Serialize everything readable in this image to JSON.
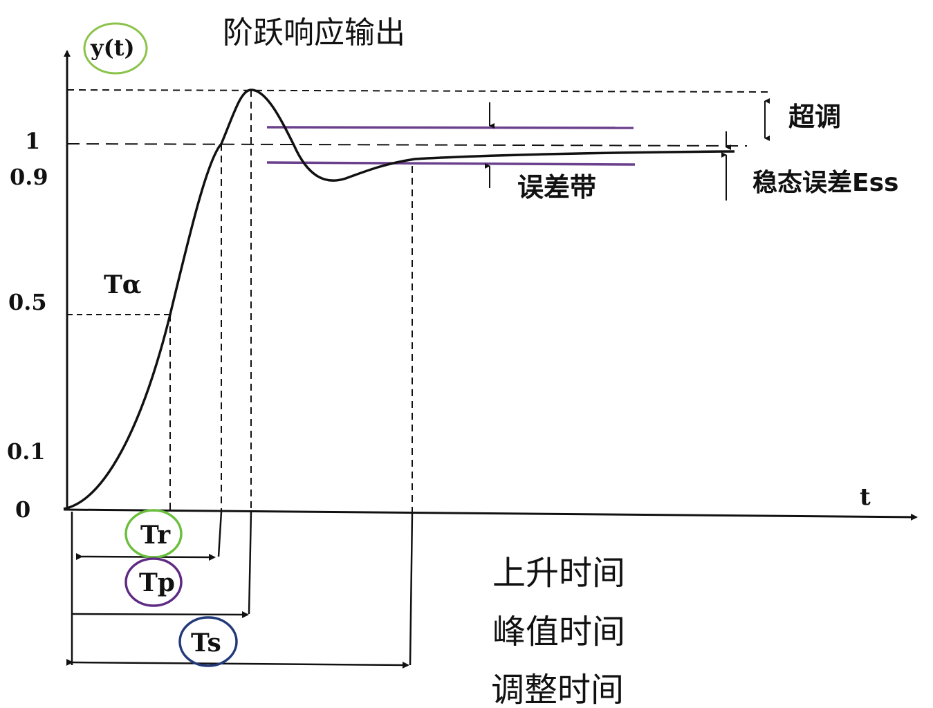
{
  "title": "阶跃响应输出",
  "y_axis_label": "y(t)",
  "x_axis_label": "t",
  "y_ticks": [
    "1",
    "0.9",
    "0.5",
    "0.1",
    "0"
  ],
  "annotations": {
    "overshoot": "超调",
    "error_band": "误差带",
    "steady_state_error": "稳态误差Ess",
    "t_alpha": "Tα"
  },
  "time_markers": {
    "tr": "Tr",
    "tp": "Tp",
    "ts": "Ts"
  },
  "legend": [
    {
      "text": "上升时间",
      "color": "#7cb342"
    },
    {
      "text": "峰值时间",
      "color": "#5e2a84"
    },
    {
      "text": "调整时间",
      "color": "#233a7a"
    }
  ],
  "colors": {
    "title": "#8bc34a",
    "yt_circle": "#8bc34a",
    "tr_circle": "#6abf3c",
    "tp_circle": "#5e2a84",
    "ts_circle": "#233a7a",
    "band": "#6a3f8c",
    "ink": "#111111"
  }
}
